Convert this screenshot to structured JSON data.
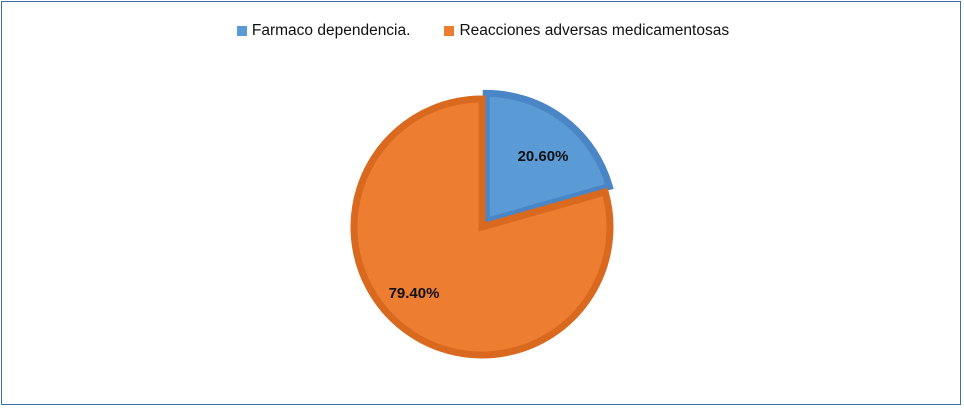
{
  "chart_data": {
    "type": "pie",
    "categories": [
      "Farmaco dependencia.",
      "Reacciones adversas medicamentosas"
    ],
    "values": [
      20.6,
      79.4
    ],
    "data_labels": [
      "20.60%",
      "79.40%"
    ],
    "colors": [
      "#5b9bd5",
      "#ed7d31"
    ],
    "edge_colors": [
      "#4a86c5",
      "#d9691f"
    ],
    "legend": "top",
    "title": ""
  }
}
